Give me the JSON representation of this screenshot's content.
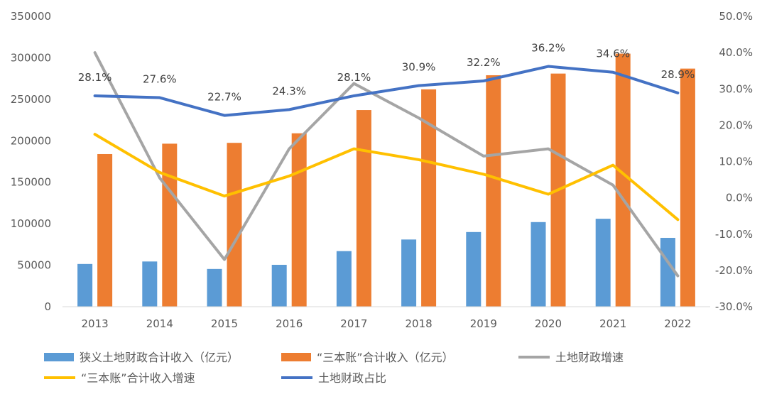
{
  "chart_data": {
    "type": "bar",
    "categories": [
      "2013",
      "2014",
      "2015",
      "2016",
      "2017",
      "2018",
      "2019",
      "2020",
      "2021",
      "2022"
    ],
    "left_axis": {
      "min": 0,
      "max": 350000,
      "step": 50000,
      "ticks": [
        "0",
        "50000",
        "100000",
        "150000",
        "200000",
        "250000",
        "300000",
        "350000"
      ]
    },
    "right_axis": {
      "min": -30,
      "max": 50,
      "step": 10,
      "ticks": [
        "-30.0%",
        "-20.0%",
        "-10.0%",
        "0.0%",
        "10.0%",
        "20.0%",
        "30.0%",
        "40.0%",
        "50.0%"
      ]
    },
    "grid": false,
    "legend_position": "bottom",
    "series": [
      {
        "name": "狭义土地财政合计收入（亿元）",
        "kind": "bar",
        "axis": "left",
        "color": "#5B9BD5",
        "values": [
          51500,
          54500,
          45500,
          50500,
          67000,
          81000,
          90000,
          102000,
          106000,
          83000
        ]
      },
      {
        "name": "“三本账”合计收入（亿元）",
        "kind": "bar",
        "axis": "left",
        "color": "#ED7D31",
        "values": [
          184000,
          196500,
          197500,
          209000,
          237000,
          262000,
          279000,
          281000,
          305000,
          287000
        ]
      },
      {
        "name": "土地财政增速",
        "kind": "line",
        "axis": "right",
        "color": "#A5A5A5",
        "values": [
          40.0,
          5.5,
          -17.0,
          13.5,
          31.5,
          22.0,
          11.5,
          13.5,
          3.5,
          -21.5
        ]
      },
      {
        "name": "“三本账”合计收入增速",
        "kind": "line",
        "axis": "right",
        "color": "#FFC000",
        "values": [
          17.5,
          7.0,
          0.5,
          6.0,
          13.5,
          10.5,
          6.5,
          1.0,
          9.0,
          -6.0
        ]
      },
      {
        "name": "土地财政占比",
        "kind": "line",
        "axis": "right",
        "color": "#4472C4",
        "values": [
          28.1,
          27.6,
          22.7,
          24.3,
          28.1,
          30.9,
          32.2,
          36.2,
          34.6,
          28.9
        ],
        "labels": [
          "28.1%",
          "27.6%",
          "22.7%",
          "24.3%",
          "28.1%",
          "30.9%",
          "32.2%",
          "36.2%",
          "34.6%",
          "28.9%"
        ]
      }
    ]
  }
}
